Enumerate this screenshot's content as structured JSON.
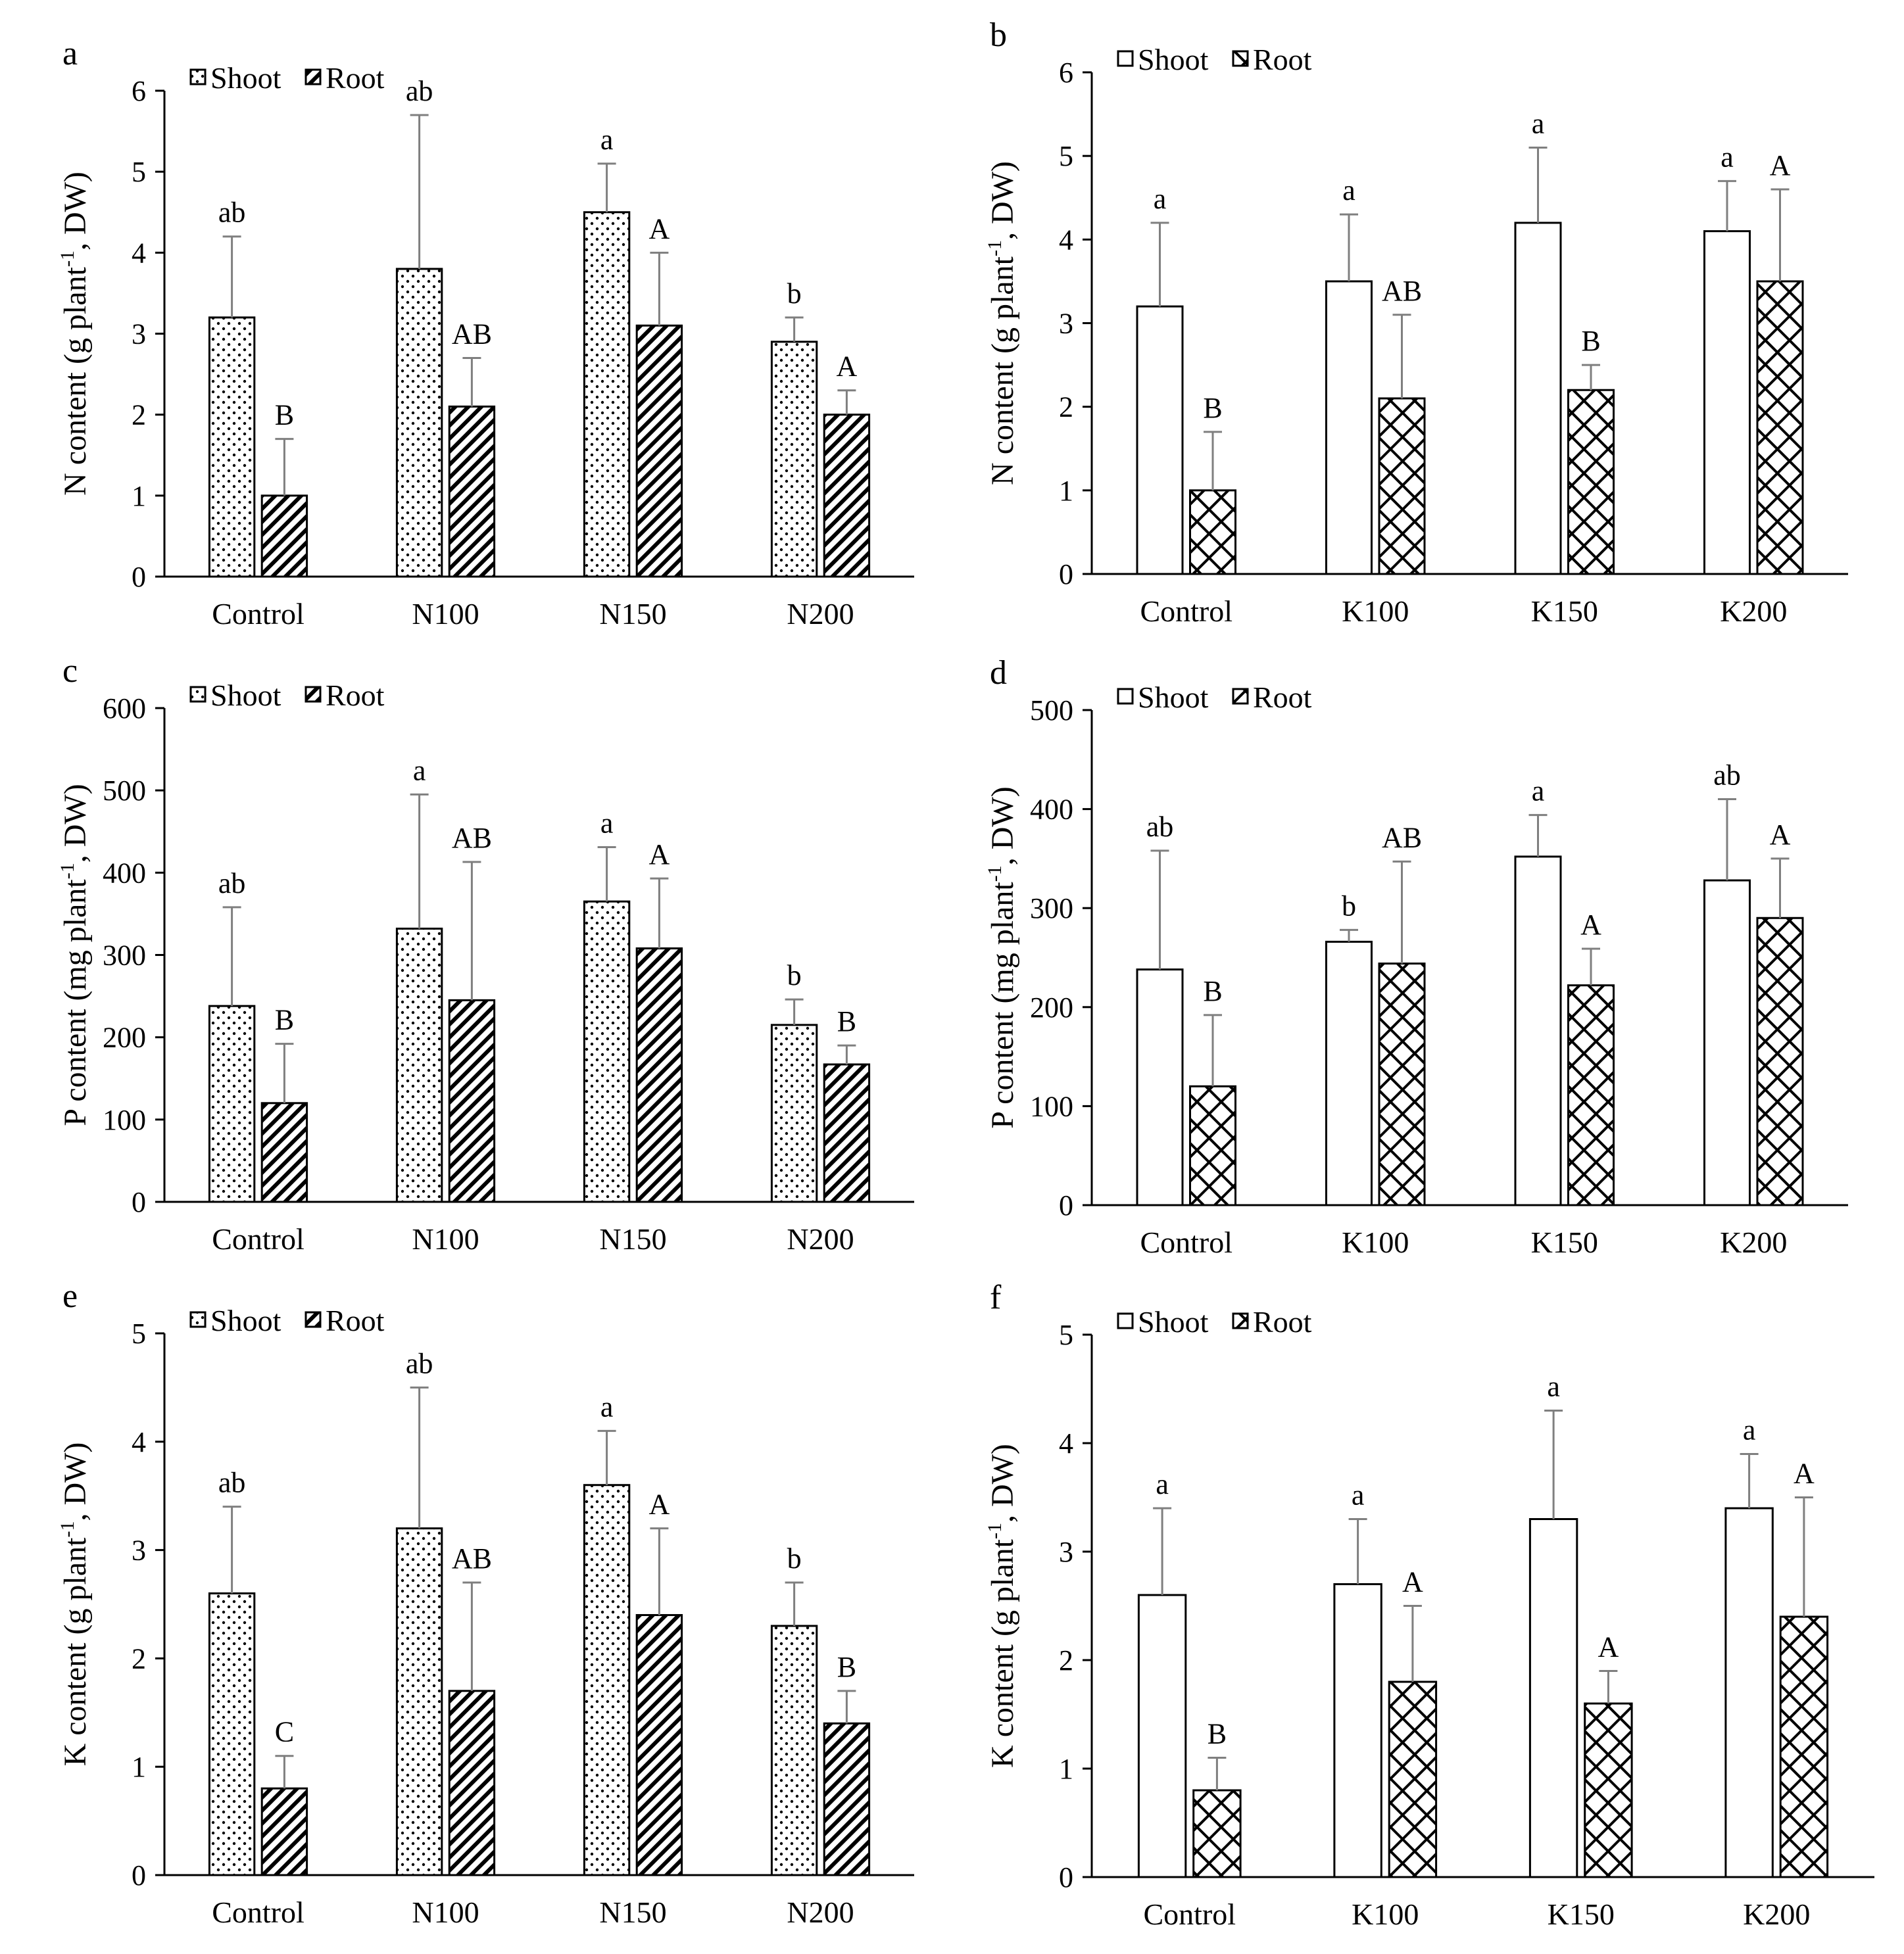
{
  "chart_data": [
    {
      "type": "bar",
      "panel": "a",
      "title": "",
      "ylabel": "N content (g plant-1, DW)",
      "xlabel": "",
      "ylim": [
        0,
        6
      ],
      "yticks": [
        "0",
        "1",
        "2",
        "3",
        "4",
        "5",
        "6"
      ],
      "categories": [
        "Control",
        "N100",
        "N150",
        "N200"
      ],
      "legend_position": "top-left",
      "series": [
        {
          "name": "Shoot",
          "pattern": "dots",
          "values": [
            3.2,
            3.8,
            4.5,
            2.9
          ],
          "errors": [
            1.0,
            1.9,
            0.6,
            0.3
          ],
          "labels": [
            "ab",
            "ab",
            "a",
            "b"
          ]
        },
        {
          "name": "Root",
          "pattern": "stripes",
          "values": [
            1.0,
            2.1,
            3.1,
            2.0
          ],
          "errors": [
            0.7,
            0.6,
            0.9,
            0.3
          ],
          "labels": [
            "B",
            "AB",
            "A",
            "A"
          ]
        }
      ]
    },
    {
      "type": "bar",
      "panel": "b",
      "title": "",
      "ylabel": "N content (g plant-1, DW)",
      "xlabel": "",
      "ylim": [
        0,
        6
      ],
      "yticks": [
        "0",
        "1",
        "2",
        "3",
        "4",
        "5",
        "6"
      ],
      "categories": [
        "Control",
        "K100",
        "K150",
        "K200"
      ],
      "legend_position": "top-left",
      "series": [
        {
          "name": "Shoot",
          "pattern": "open",
          "values": [
            3.2,
            3.5,
            4.2,
            4.1
          ],
          "errors": [
            1.0,
            0.8,
            0.9,
            0.6
          ],
          "labels": [
            "a",
            "a",
            "a",
            "a"
          ]
        },
        {
          "name": "Root",
          "pattern": "crosshatch",
          "values": [
            1.0,
            2.1,
            2.2,
            3.5
          ],
          "errors": [
            0.7,
            1.0,
            0.3,
            1.1
          ],
          "labels": [
            "B",
            "AB",
            "B",
            "A"
          ]
        }
      ]
    },
    {
      "type": "bar",
      "panel": "c",
      "title": "",
      "ylabel": "P content (mg plant-1, DW)",
      "xlabel": "",
      "ylim": [
        0,
        600
      ],
      "yticks": [
        "0",
        "100",
        "200",
        "300",
        "400",
        "500",
        "600"
      ],
      "categories": [
        "Control",
        "N100",
        "N150",
        "N200"
      ],
      "legend_position": "top-left",
      "series": [
        {
          "name": "Shoot",
          "pattern": "dots",
          "values": [
            238,
            332,
            365,
            215
          ],
          "errors": [
            120,
            163,
            66,
            31
          ],
          "labels": [
            "ab",
            "a",
            "a",
            "b"
          ]
        },
        {
          "name": "Root",
          "pattern": "stripes",
          "values": [
            120,
            245,
            308,
            167
          ],
          "errors": [
            72,
            168,
            85,
            23
          ],
          "labels": [
            "B",
            "AB",
            "A",
            "B"
          ]
        }
      ]
    },
    {
      "type": "bar",
      "panel": "d",
      "title": "",
      "ylabel": "P content (mg plant-1, DW)",
      "xlabel": "",
      "ylim": [
        0,
        500
      ],
      "yticks": [
        "0",
        "100",
        "200",
        "300",
        "400",
        "500"
      ],
      "categories": [
        "Control",
        "K100",
        "K150",
        "K200"
      ],
      "legend_position": "top-left",
      "series": [
        {
          "name": "Shoot",
          "pattern": "open",
          "values": [
            238,
            266,
            352,
            328
          ],
          "errors": [
            120,
            12,
            42,
            82
          ],
          "labels": [
            "ab",
            "b",
            "a",
            "ab"
          ]
        },
        {
          "name": "Root",
          "pattern": "crosshatch",
          "values": [
            120,
            244,
            222,
            290
          ],
          "errors": [
            72,
            103,
            37,
            60
          ],
          "labels": [
            "B",
            "AB",
            "A",
            "A"
          ]
        }
      ]
    },
    {
      "type": "bar",
      "panel": "e",
      "title": "",
      "ylabel": "K content (g plant-1, DW)",
      "xlabel": "",
      "ylim": [
        0,
        5
      ],
      "yticks": [
        "0",
        "1",
        "2",
        "3",
        "4",
        "5"
      ],
      "categories": [
        "Control",
        "N100",
        "N150",
        "N200"
      ],
      "legend_position": "top-left",
      "series": [
        {
          "name": "Shoot",
          "pattern": "dots",
          "values": [
            2.6,
            3.2,
            3.6,
            2.3
          ],
          "errors": [
            0.8,
            1.3,
            0.5,
            0.4
          ],
          "labels": [
            "ab",
            "ab",
            "a",
            "b"
          ]
        },
        {
          "name": "Root",
          "pattern": "stripes",
          "values": [
            0.8,
            1.7,
            2.4,
            1.4
          ],
          "errors": [
            0.3,
            1.0,
            0.8,
            0.3
          ],
          "labels": [
            "C",
            "AB",
            "A",
            "B"
          ]
        }
      ]
    },
    {
      "type": "bar",
      "panel": "f",
      "title": "",
      "ylabel": "K content (g plant-1, DW)",
      "xlabel": "",
      "ylim": [
        0,
        5
      ],
      "yticks": [
        "0",
        "1",
        "2",
        "3",
        "4",
        "5"
      ],
      "categories": [
        "Control",
        "K100",
        "K150",
        "K200"
      ],
      "legend_position": "top-left",
      "series": [
        {
          "name": "Shoot",
          "pattern": "open",
          "values": [
            2.6,
            2.7,
            3.3,
            3.4
          ],
          "errors": [
            0.8,
            0.6,
            1.0,
            0.5
          ],
          "labels": [
            "a",
            "a",
            "a",
            "a"
          ]
        },
        {
          "name": "Root",
          "pattern": "crosshatch",
          "values": [
            0.8,
            1.8,
            1.6,
            2.4
          ],
          "errors": [
            0.3,
            0.7,
            0.3,
            1.1
          ],
          "labels": [
            "B",
            "A",
            "A",
            "A"
          ]
        }
      ]
    }
  ]
}
